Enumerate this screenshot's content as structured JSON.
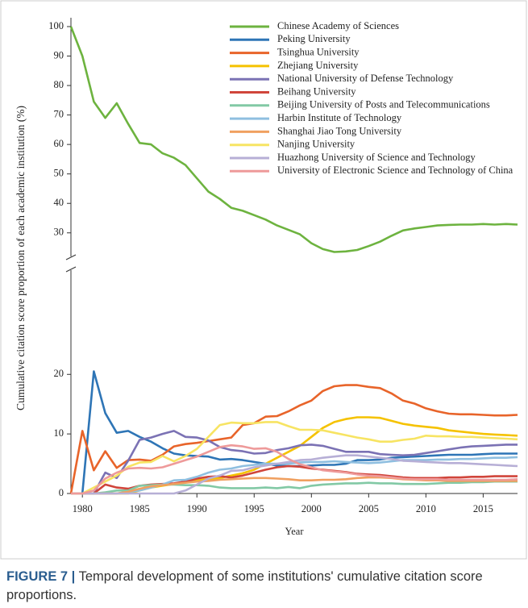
{
  "chart_data": {
    "type": "line",
    "x_label": "Year",
    "y_label": "Cumulative citation score proportion of each academic institution (%)",
    "caption_label": "FIGURE 7 |",
    "caption": "Temporal development of some institutions' cumulative citation score proportions.",
    "x": [
      1979,
      1980,
      1981,
      1982,
      1983,
      1984,
      1985,
      1986,
      1987,
      1988,
      1989,
      1990,
      1991,
      1992,
      1993,
      1994,
      1995,
      1996,
      1997,
      1998,
      1999,
      2000,
      2001,
      2002,
      2003,
      2004,
      2005,
      2006,
      2007,
      2008,
      2009,
      2010,
      2011,
      2012,
      2013,
      2014,
      2015,
      2016,
      2017,
      2018
    ],
    "xlim": [
      1979,
      2018
    ],
    "xticks": [
      1980,
      1985,
      1990,
      1995,
      2000,
      2005,
      2010,
      2015
    ],
    "ylim": [
      0,
      37.5
    ],
    "yticks": [
      0,
      10,
      20
    ],
    "y2lim": [
      22,
      103
    ],
    "y2ticks": [
      30,
      40,
      50,
      60,
      70,
      80,
      90,
      100
    ],
    "legend": "upper right",
    "series": [
      {
        "name": "Chinese Academy of Sciences",
        "color": "#6db33f",
        "axis": "y2",
        "values": [
          100,
          90,
          74.5,
          69,
          74,
          67,
          60.5,
          60,
          57,
          55.5,
          53,
          48.5,
          44,
          41.5,
          38.5,
          37.5,
          36,
          34.5,
          32.5,
          31,
          29.5,
          26.5,
          24.5,
          23.5,
          23.7,
          24.2,
          25.5,
          27,
          29,
          30.8,
          31.5,
          32,
          32.5,
          32.7,
          32.8,
          32.8,
          33,
          32.8,
          33,
          32.8
        ]
      },
      {
        "name": "Peking University",
        "color": "#2e75b6",
        "values": [
          0,
          0,
          20.5,
          13.5,
          10.2,
          10.5,
          9.5,
          8.7,
          7.6,
          6.7,
          6.4,
          6.3,
          6.2,
          5.7,
          5.8,
          5.6,
          5.3,
          5.0,
          4.7,
          4.6,
          4.6,
          4.7,
          4.8,
          4.8,
          5.0,
          5.6,
          5.6,
          5.7,
          6.0,
          6.1,
          6.2,
          6.3,
          6.4,
          6.5,
          6.5,
          6.5,
          6.6,
          6.7,
          6.7,
          6.7
        ]
      },
      {
        "name": "Tsinghua University",
        "color": "#e8642a",
        "values": [
          0,
          10.5,
          3.9,
          7.1,
          4.3,
          5.6,
          5.7,
          5.5,
          6.5,
          7.9,
          8.3,
          8.5,
          8.8,
          9.1,
          9.4,
          11.5,
          11.8,
          12.9,
          13.0,
          13.8,
          14.8,
          15.6,
          17.2,
          18.0,
          18.2,
          18.2,
          17.9,
          17.7,
          16.8,
          15.6,
          15.1,
          14.3,
          13.8,
          13.4,
          13.3,
          13.3,
          13.2,
          13.1,
          13.1,
          13.2
        ]
      },
      {
        "name": "Zhejiang University",
        "color": "#f5c200",
        "values": [
          0,
          0,
          0,
          0,
          0,
          0,
          0.5,
          1.0,
          1.3,
          1.6,
          2.0,
          2.2,
          2.4,
          2.6,
          3.0,
          3.4,
          4.0,
          5.0,
          6.0,
          7.0,
          8.0,
          9.5,
          11.0,
          12.0,
          12.5,
          12.8,
          12.8,
          12.7,
          12.2,
          11.7,
          11.4,
          11.2,
          11.0,
          10.6,
          10.4,
          10.2,
          10.0,
          9.9,
          9.8,
          9.7
        ]
      },
      {
        "name": "National University of Defense Technology",
        "color": "#7b72b4",
        "values": [
          0,
          0,
          0,
          3.5,
          2.6,
          5.5,
          9.0,
          9.4,
          10.0,
          10.5,
          9.5,
          9.4,
          8.9,
          7.8,
          7.3,
          7.1,
          6.7,
          6.8,
          7.3,
          7.6,
          8.1,
          8.2,
          8.0,
          7.5,
          7.0,
          7.0,
          7.0,
          6.6,
          6.5,
          6.4,
          6.5,
          6.8,
          7.1,
          7.4,
          7.7,
          7.9,
          8.0,
          8.1,
          8.2,
          8.2
        ]
      },
      {
        "name": "Beihang University",
        "color": "#d0453b",
        "values": [
          0,
          0,
          0,
          1.5,
          1.0,
          0.8,
          1.3,
          1.5,
          1.6,
          1.7,
          2.0,
          2.5,
          2.8,
          2.9,
          2.7,
          3.0,
          3.5,
          4.0,
          4.4,
          4.6,
          4.5,
          4.2,
          4.0,
          3.8,
          3.6,
          3.3,
          3.2,
          3.1,
          2.9,
          2.7,
          2.6,
          2.6,
          2.6,
          2.7,
          2.7,
          2.8,
          2.8,
          2.9,
          2.9,
          2.9
        ]
      },
      {
        "name": "Beijing University of Posts and Telecommunications",
        "color": "#82c9a5",
        "values": [
          0,
          0,
          0,
          0.2,
          0.5,
          0.5,
          1.3,
          1.4,
          1.5,
          1.5,
          1.4,
          1.4,
          1.3,
          1.0,
          0.9,
          0.9,
          0.9,
          1.0,
          0.9,
          1.1,
          0.9,
          1.3,
          1.5,
          1.6,
          1.7,
          1.7,
          1.8,
          1.7,
          1.7,
          1.6,
          1.6,
          1.6,
          1.7,
          1.8,
          1.8,
          1.9,
          1.9,
          2.0,
          2.0,
          2.0
        ]
      },
      {
        "name": "Harbin Institute of Technology",
        "color": "#8fbfe0",
        "values": [
          0,
          0,
          0,
          0,
          0,
          0.3,
          0.5,
          1.0,
          1.5,
          2.2,
          2.3,
          2.8,
          3.5,
          4.0,
          4.2,
          4.6,
          4.8,
          5.0,
          5.0,
          5.0,
          5.2,
          5.3,
          5.3,
          5.4,
          5.3,
          5.2,
          5.1,
          5.2,
          5.4,
          5.6,
          5.6,
          5.6,
          5.7,
          5.7,
          5.8,
          5.8,
          5.9,
          6.0,
          6.0,
          6.1
        ]
      },
      {
        "name": "Shanghai Jiao Tong University",
        "color": "#f0a060",
        "values": [
          0,
          0,
          0,
          0,
          0,
          0.3,
          0.8,
          1.2,
          1.4,
          1.6,
          1.8,
          2.0,
          2.1,
          2.3,
          2.4,
          2.5,
          2.6,
          2.6,
          2.5,
          2.4,
          2.2,
          2.2,
          2.3,
          2.3,
          2.4,
          2.6,
          2.7,
          2.7,
          2.6,
          2.4,
          2.3,
          2.2,
          2.2,
          2.1,
          2.1,
          2.1,
          2.1,
          2.1,
          2.1,
          2.1
        ]
      },
      {
        "name": "Nanjing University",
        "color": "#f7e463",
        "values": [
          0,
          0,
          1,
          2,
          3,
          4.5,
          5.2,
          5.3,
          6.3,
          5.4,
          6.3,
          7.5,
          9.5,
          11.5,
          11.9,
          11.8,
          11.8,
          12.0,
          12.0,
          11.3,
          10.7,
          10.7,
          10.6,
          10.2,
          9.8,
          9.4,
          9.1,
          8.7,
          8.7,
          9.0,
          9.2,
          9.7,
          9.6,
          9.6,
          9.5,
          9.5,
          9.4,
          9.3,
          9.2,
          9.1
        ]
      },
      {
        "name": "Huazhong University of Science and Technology",
        "color": "#b7afd6",
        "values": [
          0,
          0,
          0,
          0,
          0,
          0,
          0,
          0,
          0,
          0,
          0.5,
          1.5,
          2.5,
          3.0,
          3.8,
          3.9,
          4.4,
          4.7,
          5.0,
          5.3,
          5.6,
          5.7,
          6.0,
          6.2,
          6.4,
          6.4,
          6.2,
          6.0,
          5.8,
          5.5,
          5.4,
          5.3,
          5.2,
          5.1,
          5.1,
          5.0,
          4.9,
          4.8,
          4.7,
          4.6
        ]
      },
      {
        "name": "University of Electronic Science and Technology of China",
        "color": "#ee9a9a",
        "values": [
          0,
          0,
          0.5,
          2.5,
          3.5,
          4.2,
          4.3,
          4.2,
          4.4,
          5.0,
          5.6,
          6.2,
          7.0,
          7.8,
          8.1,
          7.9,
          7.5,
          7.6,
          7.0,
          5.8,
          4.9,
          4.4,
          3.9,
          3.7,
          3.5,
          3.2,
          3.0,
          2.9,
          2.7,
          2.5,
          2.4,
          2.4,
          2.4,
          2.3,
          2.3,
          2.3,
          2.3,
          2.3,
          2.3,
          2.4
        ]
      }
    ]
  }
}
